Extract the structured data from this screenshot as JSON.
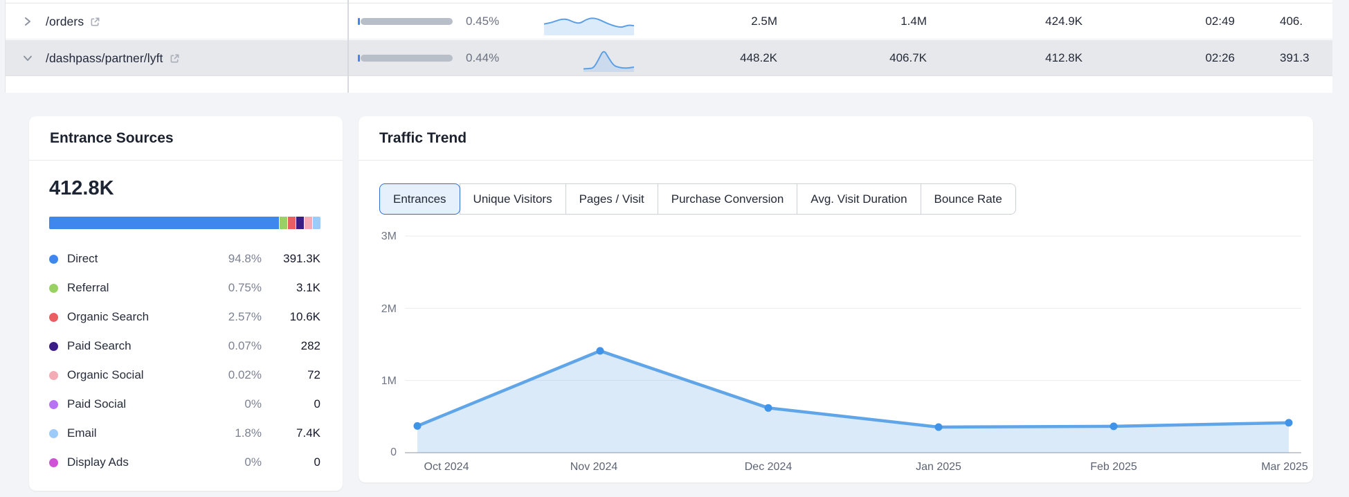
{
  "table": {
    "rows": [
      {
        "path": "/orders",
        "chevron": "right",
        "conversion": "0.45%",
        "sparkline": {
          "offset": 0,
          "width": 130,
          "points": [
            0.4,
            0.44,
            0.52,
            0.6,
            0.58,
            0.46,
            0.42,
            0.58,
            0.64,
            0.6,
            0.48,
            0.38,
            0.3,
            0.26,
            0.36,
            0.33
          ]
        },
        "values": [
          "2.5M",
          "1.4M",
          "424.9K",
          "02:49"
        ],
        "partial": "406."
      },
      {
        "path": "/dashpass/partner/lyft",
        "chevron": "down",
        "conversion": "0.44%",
        "sparkline": {
          "offset": 57,
          "width": 73,
          "points": [
            0.07,
            0.08,
            0.1,
            0.45,
            0.85,
            0.5,
            0.2,
            0.13,
            0.1,
            0.11,
            0.14
          ]
        },
        "values": [
          "448.2K",
          "406.7K",
          "412.8K",
          "02:26"
        ],
        "partial": "391.3"
      }
    ]
  },
  "entrance_sources": {
    "title": "Entrance Sources",
    "total": "412.8K",
    "items": [
      {
        "label": "Direct",
        "pct": "94.8%",
        "value": "391.3K",
        "color": "#3f87ee"
      },
      {
        "label": "Referral",
        "pct": "0.75%",
        "value": "3.1K",
        "color": "#9ad164"
      },
      {
        "label": "Organic Search",
        "pct": "2.57%",
        "value": "10.6K",
        "color": "#ea5e62"
      },
      {
        "label": "Paid Search",
        "pct": "0.07%",
        "value": "282",
        "color": "#3b1d86"
      },
      {
        "label": "Organic Social",
        "pct": "0.02%",
        "value": "72",
        "color": "#f3abb5"
      },
      {
        "label": "Paid Social",
        "pct": "0%",
        "value": "0",
        "color": "#b873f4"
      },
      {
        "label": "Email",
        "pct": "1.8%",
        "value": "7.4K",
        "color": "#9dcbf9"
      },
      {
        "label": "Display Ads",
        "pct": "0%",
        "value": "0",
        "color": "#cf52d6"
      }
    ]
  },
  "traffic_trend": {
    "title": "Traffic Trend",
    "tabs": [
      {
        "label": "Entrances",
        "selected": true
      },
      {
        "label": "Unique Visitors",
        "selected": false
      },
      {
        "label": "Pages / Visit",
        "selected": false
      },
      {
        "label": "Purchase Conversion",
        "selected": false
      },
      {
        "label": "Avg. Visit Duration",
        "selected": false
      },
      {
        "label": "Bounce Rate",
        "selected": false
      }
    ],
    "chart_data": {
      "type": "area",
      "x": [
        "Oct 2024",
        "Nov 2024",
        "Dec 2024",
        "Jan 2025",
        "Feb 2025",
        "Mar 2025"
      ],
      "series": [
        {
          "name": "Entrances",
          "values": [
            370000,
            1410000,
            620000,
            355000,
            365000,
            415000
          ]
        }
      ],
      "ylim": [
        0,
        3000000
      ],
      "yticks": [
        {
          "label": "0",
          "value": 0
        },
        {
          "label": "1M",
          "value": 1000000
        },
        {
          "label": "2M",
          "value": 2000000
        },
        {
          "label": "3M",
          "value": 3000000
        }
      ],
      "grid": true,
      "line_color": "#5fa5e8",
      "point_color": "#3f93e8",
      "fill_color": "rgba(125,179,235,0.28)",
      "spark_line_color": "#5b9fe6",
      "spark_fill_color": "rgba(140,188,238,0.30)"
    }
  }
}
